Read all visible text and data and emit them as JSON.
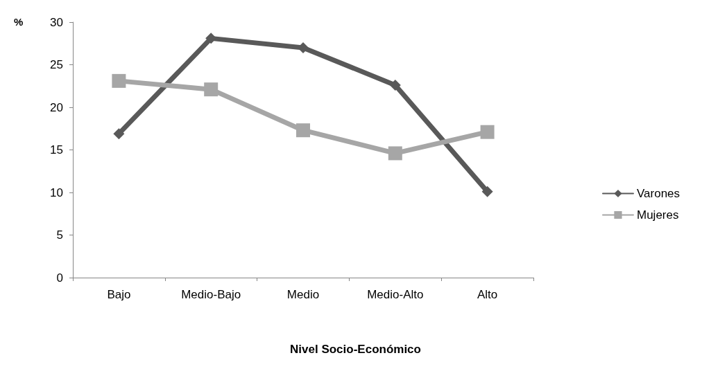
{
  "chart_data": {
    "type": "line",
    "ylabel": "%",
    "xlabel": "Nivel Socio-Económico",
    "categories": [
      "Bajo",
      "Medio-Bajo",
      "Medio",
      "Medio-Alto",
      "Alto"
    ],
    "series": [
      {
        "name": "Varones",
        "color": "#595959",
        "marker": "diamond",
        "values": [
          16.9,
          28.1,
          27.0,
          22.6,
          10.1
        ]
      },
      {
        "name": "Mujeres",
        "color": "#a6a6a6",
        "marker": "square",
        "values": [
          23.1,
          22.1,
          17.3,
          14.6,
          17.1
        ]
      }
    ],
    "ylim": [
      0,
      30
    ],
    "yticks": [
      0,
      5,
      10,
      15,
      20,
      25,
      30
    ],
    "grid": false,
    "legend": "right",
    "line_style": "solid"
  }
}
